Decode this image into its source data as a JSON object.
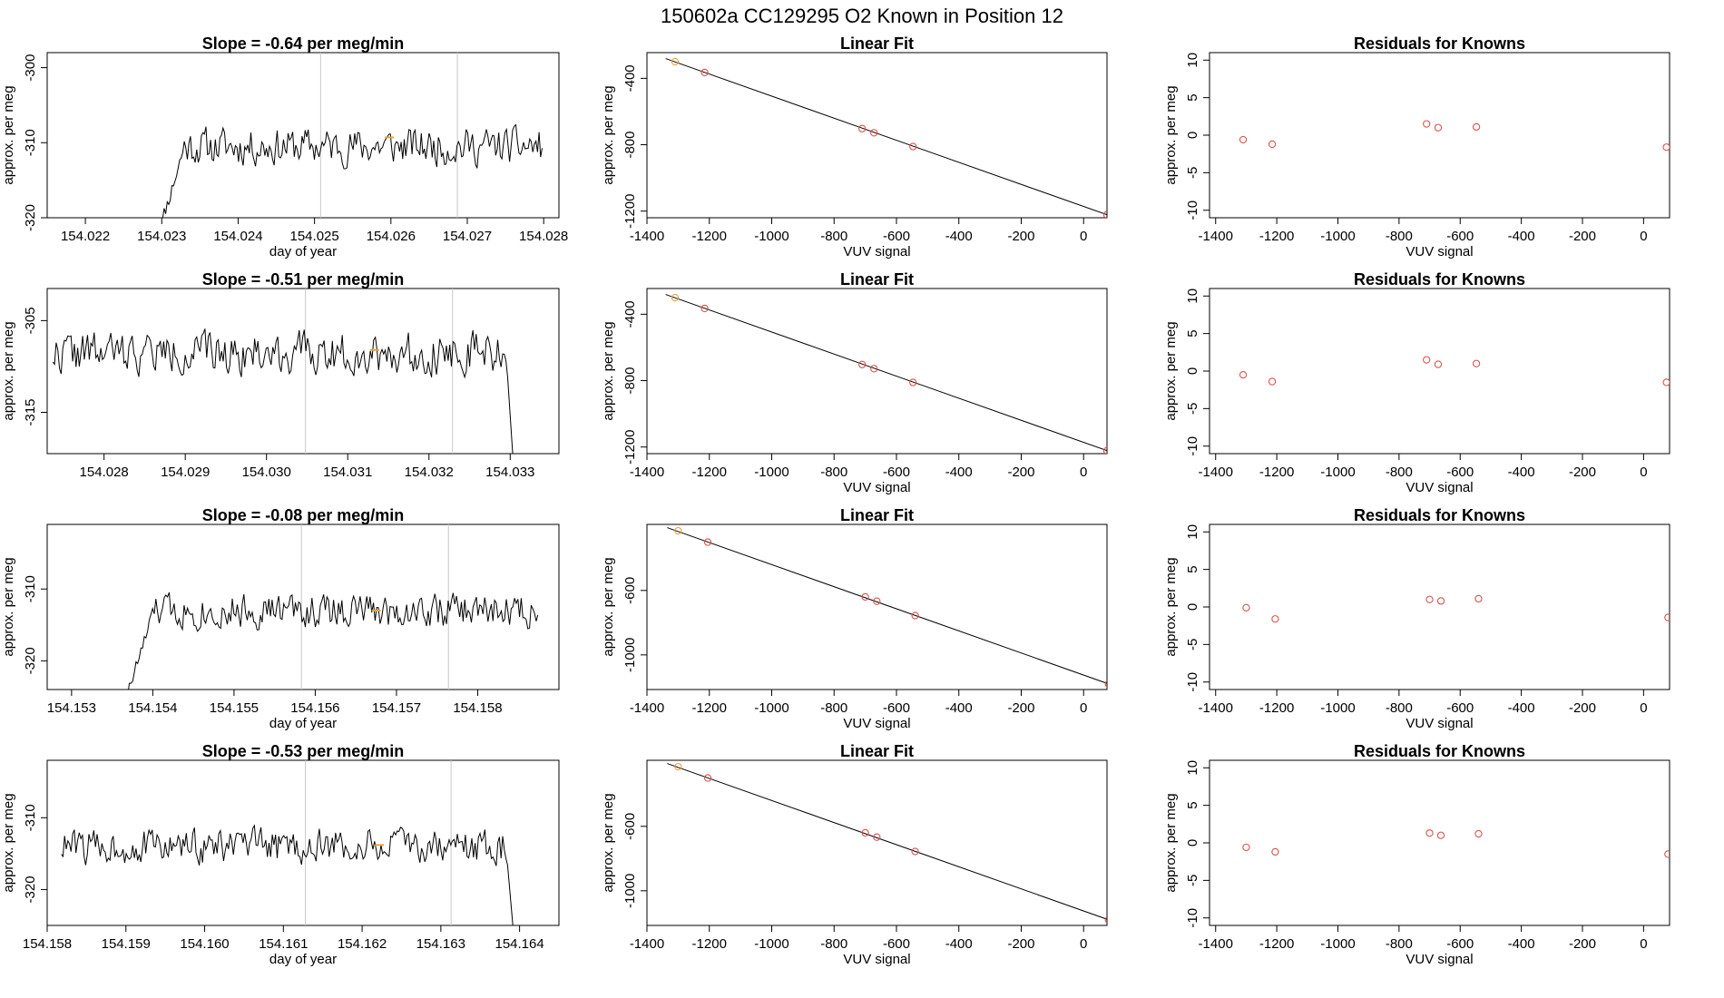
{
  "figure_title": "150602a      CC129295    O2 Known in Position  12",
  "chart_data": [
    {
      "type": "line",
      "panel": "timeseries-1",
      "title": "Slope =  -0.64  per meg/min",
      "xlabel": "day of year",
      "ylabel": "approx. per meg",
      "xlim": [
        154.0215,
        154.0282
      ],
      "ylim": [
        -320,
        -298
      ],
      "xticks": [
        154.022,
        154.023,
        154.024,
        154.025,
        154.026,
        154.027,
        154.028
      ],
      "xtick_labels": [
        "154.022",
        "154.023",
        "154.024",
        "154.025",
        "154.026",
        "154.027",
        "154.028"
      ],
      "yticks": [
        -320,
        -310,
        -300
      ],
      "ytick_labels": [
        "-320",
        "-310",
        "-300"
      ],
      "vlines": [
        154.02508,
        154.02687
      ],
      "series_start": 154.02293,
      "series_end": 154.02798,
      "series_n": 250,
      "baseline": -310.5,
      "noise": 2.2,
      "ramp_start": -323,
      "seed": 11,
      "marker": {
        "x": 154.02598,
        "y": -309.3
      }
    },
    {
      "type": "scatter",
      "panel": "linear-fit-1",
      "title": "Linear Fit",
      "xlabel": "VUV signal",
      "ylabel": "approx. per meg",
      "xlim": [
        -1400,
        75
      ],
      "ylim": [
        -1240,
        -245
      ],
      "xticks": [
        -1400,
        -1200,
        -1000,
        -800,
        -600,
        -400,
        -200,
        0
      ],
      "xtick_labels": [
        "-1400",
        "-1200",
        "-1000",
        "-800",
        "-600",
        "-400",
        "-200",
        "0"
      ],
      "yticks": [
        -1200,
        -800,
        -400
      ],
      "ytick_labels": [
        "-1200",
        "-800",
        "-400"
      ],
      "x": [
        -1310,
        -1215,
        -710,
        -672,
        -547,
        75
      ],
      "y": [
        -300,
        -365,
        -703,
        -728,
        -811,
        -1222
      ],
      "highlight_index": 0,
      "fit_line": {
        "x": [
          -1340,
          75
        ],
        "y": [
          -281,
          -1222
        ]
      }
    },
    {
      "type": "scatter",
      "panel": "residuals-1",
      "title": "Residuals for Knowns",
      "xlabel": "VUV signal",
      "ylabel": "approx. per meg",
      "xlim": [
        -1420,
        85
      ],
      "ylim": [
        -11,
        11
      ],
      "xticks": [
        -1400,
        -1200,
        -1000,
        -800,
        -600,
        -400,
        -200,
        0
      ],
      "xtick_labels": [
        "-1400",
        "-1200",
        "-1000",
        "-800",
        "-600",
        "-400",
        "-200",
        "0"
      ],
      "yticks": [
        -10,
        -5,
        0,
        5,
        10
      ],
      "ytick_labels": [
        "-10",
        "-5",
        "0",
        "5",
        "10"
      ],
      "x": [
        -1310,
        -1215,
        -710,
        -672,
        -547,
        75
      ],
      "y": [
        -0.6,
        -1.2,
        1.5,
        1.0,
        1.1,
        -1.6
      ]
    },
    {
      "type": "line",
      "panel": "timeseries-2",
      "title": "Slope =  -0.51  per meg/min",
      "xlabel": "",
      "ylabel": "approx. per meg",
      "xlim": [
        154.0273,
        154.0336
      ],
      "ylim": [
        -319.5,
        -301.5
      ],
      "xticks": [
        154.028,
        154.029,
        154.03,
        154.031,
        154.032,
        154.033
      ],
      "xtick_labels": [
        "154.028",
        "154.029",
        "154.030",
        "154.031",
        "154.032",
        "154.033"
      ],
      "yticks": [
        -315,
        -305
      ],
      "ytick_labels": [
        "-315",
        "-305"
      ],
      "vlines": [
        154.03048,
        154.03229
      ],
      "series_start": 154.02737,
      "series_end": 154.03305,
      "series_n": 280,
      "baseline": -308.5,
      "noise": 2.0,
      "ramp_start": null,
      "seed": 22,
      "end_drop": -322,
      "marker": {
        "x": 154.03133,
        "y": -308.2
      }
    },
    {
      "type": "scatter",
      "panel": "linear-fit-2",
      "title": "Linear Fit",
      "xlabel": "VUV signal",
      "ylabel": "approx. per meg",
      "xlim": [
        -1400,
        75
      ],
      "ylim": [
        -1240,
        -245
      ],
      "xticks": [
        -1400,
        -1200,
        -1000,
        -800,
        -600,
        -400,
        -200,
        0
      ],
      "xtick_labels": [
        "-1400",
        "-1200",
        "-1000",
        "-800",
        "-600",
        "-400",
        "-200",
        "0"
      ],
      "yticks": [
        -1200,
        -800,
        -400
      ],
      "ytick_labels": [
        "-1200",
        "-800",
        "-400"
      ],
      "x": [
        -1310,
        -1215,
        -710,
        -672,
        -547,
        75
      ],
      "y": [
        -300,
        -365,
        -703,
        -728,
        -811,
        -1222
      ],
      "highlight_index": 0,
      "fit_line": {
        "x": [
          -1340,
          75
        ],
        "y": [
          -281,
          -1222
        ]
      }
    },
    {
      "type": "scatter",
      "panel": "residuals-2",
      "title": "Residuals for Knowns",
      "xlabel": "VUV signal",
      "ylabel": "approx. per meg",
      "xlim": [
        -1420,
        85
      ],
      "ylim": [
        -11,
        11
      ],
      "xticks": [
        -1400,
        -1200,
        -1000,
        -800,
        -600,
        -400,
        -200,
        0
      ],
      "xtick_labels": [
        "-1400",
        "-1200",
        "-1000",
        "-800",
        "-600",
        "-400",
        "-200",
        "0"
      ],
      "yticks": [
        -10,
        -5,
        0,
        5,
        10
      ],
      "ytick_labels": [
        "-10",
        "-5",
        "0",
        "5",
        "10"
      ],
      "x": [
        -1310,
        -1215,
        -710,
        -672,
        -547,
        75
      ],
      "y": [
        -0.5,
        -1.4,
        1.5,
        0.9,
        1.0,
        -1.5
      ]
    },
    {
      "type": "line",
      "panel": "timeseries-3",
      "title": "Slope =  -0.08  per meg/min",
      "xlabel": "day of year",
      "ylabel": "approx. per meg",
      "xlim": [
        154.1527,
        154.159
      ],
      "ylim": [
        -324,
        -301
      ],
      "xticks": [
        154.153,
        154.154,
        154.155,
        154.156,
        154.157,
        154.158
      ],
      "xtick_labels": [
        "154.153",
        "154.154",
        "154.155",
        "154.156",
        "154.157",
        "154.158"
      ],
      "yticks": [
        -320,
        -310
      ],
      "ytick_labels": [
        "-320",
        "-310"
      ],
      "vlines": [
        154.15583,
        154.15764
      ],
      "series_start": 154.15365,
      "series_end": 154.15874,
      "series_n": 250,
      "baseline": -313,
      "noise": 2.2,
      "ramp_start": -326,
      "seed": 33,
      "marker": {
        "x": 154.15675,
        "y": -313.0
      }
    },
    {
      "type": "scatter",
      "panel": "linear-fit-3",
      "title": "Linear Fit",
      "xlabel": "VUV signal",
      "ylabel": "approx. per meg",
      "xlim": [
        -1400,
        75
      ],
      "ylim": [
        -1215,
        -190
      ],
      "xticks": [
        -1400,
        -1200,
        -1000,
        -800,
        -600,
        -400,
        -200,
        0
      ],
      "xtick_labels": [
        "-1400",
        "-1200",
        "-1000",
        "-800",
        "-600",
        "-400",
        "-200",
        "0"
      ],
      "yticks": [
        -1000,
        -600
      ],
      "ytick_labels": [
        "-1000",
        "-600"
      ],
      "x": [
        -1300,
        -1205,
        -700,
        -663,
        -540,
        80
      ],
      "y": [
        -230,
        -300,
        -640,
        -667,
        -756,
        -1180
      ],
      "highlight_index": 0,
      "fit_line": {
        "x": [
          -1335,
          80
        ],
        "y": [
          -210,
          -1180
        ]
      }
    },
    {
      "type": "scatter",
      "panel": "residuals-3",
      "title": "Residuals for Knowns",
      "xlabel": "VUV signal",
      "ylabel": "approx. per meg",
      "xlim": [
        -1420,
        85
      ],
      "ylim": [
        -11,
        11
      ],
      "xticks": [
        -1400,
        -1200,
        -1000,
        -800,
        -600,
        -400,
        -200,
        0
      ],
      "xtick_labels": [
        "-1400",
        "-1200",
        "-1000",
        "-800",
        "-600",
        "-400",
        "-200",
        "0"
      ],
      "yticks": [
        -10,
        -5,
        0,
        5,
        10
      ],
      "ytick_labels": [
        "-10",
        "-5",
        "0",
        "5",
        "10"
      ],
      "x": [
        -1300,
        -1205,
        -700,
        -663,
        -540,
        80
      ],
      "y": [
        -0.1,
        -1.6,
        1.0,
        0.8,
        1.1,
        -1.4
      ]
    },
    {
      "type": "line",
      "panel": "timeseries-4",
      "title": "Slope =  -0.53  per meg/min",
      "xlabel": "day of year",
      "ylabel": "approx. per meg",
      "xlim": [
        154.158,
        154.1645
      ],
      "ylim": [
        -325,
        -302
      ],
      "xticks": [
        154.158,
        154.159,
        154.16,
        154.161,
        154.162,
        154.163,
        154.164
      ],
      "xtick_labels": [
        "154.158",
        "154.159",
        "154.160",
        "154.161",
        "154.162",
        "154.163",
        "154.164"
      ],
      "yticks": [
        -320,
        -310
      ],
      "ytick_labels": [
        "-320",
        "-310"
      ],
      "vlines": [
        154.16128,
        154.16313
      ],
      "series_start": 154.15818,
      "series_end": 154.16393,
      "series_n": 280,
      "baseline": -314,
      "noise": 2.2,
      "ramp_start": null,
      "seed": 44,
      "end_drop": -327,
      "marker": {
        "x": 154.16222,
        "y": -313.8
      }
    },
    {
      "type": "scatter",
      "panel": "linear-fit-4",
      "title": "Linear Fit",
      "xlabel": "VUV signal",
      "ylabel": "approx. per meg",
      "xlim": [
        -1400,
        75
      ],
      "ylim": [
        -1215,
        -190
      ],
      "xticks": [
        -1400,
        -1200,
        -1000,
        -800,
        -600,
        -400,
        -200,
        0
      ],
      "xtick_labels": [
        "-1400",
        "-1200",
        "-1000",
        "-800",
        "-600",
        "-400",
        "-200",
        "0"
      ],
      "yticks": [
        -1000,
        -600
      ],
      "ytick_labels": [
        "-1000",
        "-600"
      ],
      "x": [
        -1300,
        -1205,
        -700,
        -663,
        -540,
        80
      ],
      "y": [
        -230,
        -300,
        -640,
        -667,
        -756,
        -1180
      ],
      "highlight_index": 0,
      "fit_line": {
        "x": [
          -1335,
          80
        ],
        "y": [
          -210,
          -1180
        ]
      }
    },
    {
      "type": "scatter",
      "panel": "residuals-4",
      "title": "Residuals for Knowns",
      "xlabel": "VUV signal",
      "ylabel": "approx. per meg",
      "xlim": [
        -1420,
        85
      ],
      "ylim": [
        -11,
        11
      ],
      "xticks": [
        -1400,
        -1200,
        -1000,
        -800,
        -600,
        -400,
        -200,
        0
      ],
      "xtick_labels": [
        "-1400",
        "-1200",
        "-1000",
        "-800",
        "-600",
        "-400",
        "-200",
        "0"
      ],
      "yticks": [
        -10,
        -5,
        0,
        5,
        10
      ],
      "ytick_labels": [
        "-10",
        "-5",
        "0",
        "5",
        "10"
      ],
      "x": [
        -1300,
        -1205,
        -700,
        -663,
        -540,
        80
      ],
      "y": [
        -0.6,
        -1.2,
        1.3,
        1.0,
        1.2,
        -1.5
      ]
    }
  ],
  "colors": {
    "line": "#000000",
    "point": "#d9534f",
    "highlight": "#e8a33c",
    "vline": "#c8c8c8",
    "axis": "#000000"
  }
}
